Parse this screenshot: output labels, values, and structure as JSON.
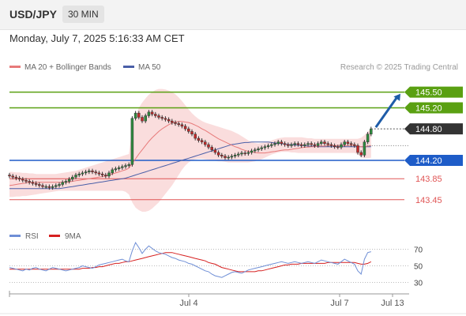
{
  "header": {
    "pair": "USD/JPY",
    "timeframe": "30 MIN"
  },
  "datetime": "Monday, July 7, 2025 5:16:33 AM CET",
  "credit": "Research © 2025 Trading Central",
  "colors": {
    "ma20": "#e77a7a",
    "bands": "#f9d4d4",
    "ma50": "#4a5fa8",
    "up": "#2e8b3e",
    "down": "#c62828",
    "candle": "#333333",
    "resistance": "#5aa012",
    "support_blue": "#1e5cc8",
    "support_red": "#e05555",
    "arrow": "#1e5ca8",
    "rsi": "#6f8fd6",
    "rsi_ma": "#d62020",
    "current": "#333333"
  },
  "chart_data": [
    {
      "type": "candlestick",
      "title": "",
      "legend": [
        {
          "name": "MA 20 + Bollinger Bands",
          "color": "#e77a7a"
        },
        {
          "name": "MA 50",
          "color": "#4a5fa8"
        }
      ],
      "legend_position": "top-left",
      "ylim": [
        143.1,
        145.75
      ],
      "x_ticks": [
        "Jul 4",
        "Jul 7",
        "Jul 13"
      ],
      "current_price": "144.80",
      "levels": [
        {
          "value": 145.5,
          "label": "145.50",
          "kind": "resistance",
          "style": "tag"
        },
        {
          "value": 145.2,
          "label": "145.20",
          "kind": "resistance",
          "style": "tag"
        },
        {
          "value": 144.2,
          "label": "144.20",
          "kind": "support",
          "style": "tag"
        },
        {
          "value": 143.85,
          "label": "143.85",
          "kind": "support",
          "style": "text"
        },
        {
          "value": 143.45,
          "label": "143.45",
          "kind": "support",
          "style": "text"
        }
      ],
      "close": [
        143.9,
        143.88,
        143.86,
        143.84,
        143.82,
        143.8,
        143.78,
        143.76,
        143.74,
        143.72,
        143.7,
        143.7,
        143.68,
        143.7,
        143.72,
        143.74,
        143.78,
        143.8,
        143.84,
        143.88,
        143.92,
        143.94,
        143.96,
        143.98,
        144.0,
        143.98,
        143.96,
        143.94,
        143.92,
        143.9,
        143.96,
        144.02,
        144.04,
        144.06,
        144.08,
        144.1,
        144.12,
        145.0,
        145.1,
        145.02,
        144.95,
        145.05,
        145.12,
        145.08,
        145.05,
        145.02,
        145.0,
        144.98,
        144.95,
        144.92,
        144.9,
        144.88,
        144.85,
        144.8,
        144.75,
        144.7,
        144.62,
        144.58,
        144.55,
        144.5,
        144.45,
        144.4,
        144.35,
        144.3,
        144.28,
        144.25,
        144.26,
        144.28,
        144.3,
        144.32,
        144.34,
        144.33,
        144.35,
        144.38,
        144.4,
        144.42,
        144.44,
        144.46,
        144.48,
        144.5,
        144.52,
        144.55,
        144.52,
        144.5,
        144.48,
        144.5,
        144.52,
        144.5,
        144.48,
        144.5,
        144.52,
        144.5,
        144.48,
        144.52,
        144.55,
        144.52,
        144.5,
        144.48,
        144.46,
        144.45,
        144.5,
        144.55,
        144.52,
        144.5,
        144.48,
        144.35,
        144.3,
        144.55,
        144.7,
        144.8
      ],
      "ma20": [
        143.72,
        143.73,
        143.74,
        143.75,
        143.76,
        143.77,
        143.78,
        143.78,
        143.78,
        143.78,
        143.78,
        143.78,
        143.78,
        143.78,
        143.78,
        143.78,
        143.78,
        143.78,
        143.79,
        143.8,
        143.81,
        143.82,
        143.83,
        143.84,
        143.85,
        143.86,
        143.87,
        143.88,
        143.89,
        143.9,
        143.92,
        143.94,
        143.96,
        143.98,
        144.0,
        144.02,
        144.05,
        144.14,
        144.23,
        144.32,
        144.4,
        144.48,
        144.56,
        144.63,
        144.69,
        144.75,
        144.8,
        144.84,
        144.88,
        144.91,
        144.93,
        144.94,
        144.94,
        144.93,
        144.92,
        144.9,
        144.87,
        144.84,
        144.8,
        144.77,
        144.73,
        144.69,
        144.65,
        144.61,
        144.58,
        144.55,
        144.52,
        144.49,
        144.46,
        144.44,
        144.41,
        144.39,
        144.37,
        144.36,
        144.35,
        144.34,
        144.34,
        144.34,
        144.35,
        144.36,
        144.37,
        144.38,
        144.39,
        144.4,
        144.4,
        144.41,
        144.42,
        144.43,
        144.44,
        144.45,
        144.45,
        144.46,
        144.46,
        144.47,
        144.47,
        144.47,
        144.48,
        144.48,
        144.48,
        144.48,
        144.48,
        144.48,
        144.48,
        144.48,
        144.48,
        144.47,
        144.46,
        144.46,
        144.47,
        144.48
      ],
      "bb_upper": [
        143.98,
        143.98,
        143.97,
        143.97,
        143.96,
        143.96,
        143.95,
        143.95,
        143.94,
        143.94,
        143.94,
        143.94,
        143.94,
        143.94,
        143.94,
        143.95,
        143.96,
        143.97,
        143.98,
        143.99,
        144.0,
        144.02,
        144.04,
        144.06,
        144.08,
        144.1,
        144.12,
        144.14,
        144.16,
        144.18,
        144.2,
        144.22,
        144.24,
        144.26,
        144.28,
        144.3,
        144.32,
        144.8,
        145.05,
        145.2,
        145.3,
        145.38,
        145.45,
        145.5,
        145.54,
        145.56,
        145.56,
        145.55,
        145.53,
        145.5,
        145.46,
        145.4,
        145.33,
        145.25,
        145.17,
        145.1,
        145.04,
        144.99,
        144.95,
        144.92,
        144.9,
        144.88,
        144.86,
        144.84,
        144.82,
        144.8,
        144.78,
        144.76,
        144.73,
        144.7,
        144.66,
        144.62,
        144.58,
        144.55,
        144.53,
        144.52,
        144.53,
        144.54,
        144.56,
        144.58,
        144.6,
        144.62,
        144.63,
        144.64,
        144.64,
        144.64,
        144.64,
        144.64,
        144.64,
        144.63,
        144.62,
        144.62,
        144.61,
        144.61,
        144.61,
        144.61,
        144.61,
        144.61,
        144.61,
        144.61,
        144.61,
        144.61,
        144.61,
        144.61,
        144.61,
        144.61,
        144.63,
        144.68,
        144.75,
        144.8
      ],
      "bb_lower": [
        143.5,
        143.5,
        143.51,
        143.51,
        143.52,
        143.52,
        143.53,
        143.54,
        143.55,
        143.56,
        143.57,
        143.58,
        143.59,
        143.6,
        143.61,
        143.62,
        143.62,
        143.62,
        143.62,
        143.62,
        143.62,
        143.62,
        143.62,
        143.62,
        143.62,
        143.62,
        143.62,
        143.62,
        143.62,
        143.62,
        143.62,
        143.62,
        143.62,
        143.62,
        143.62,
        143.6,
        143.55,
        143.4,
        143.3,
        143.25,
        143.22,
        143.22,
        143.24,
        143.28,
        143.34,
        143.4,
        143.48,
        143.56,
        143.64,
        143.72,
        143.82,
        143.92,
        144.02,
        144.1,
        144.16,
        144.2,
        144.22,
        144.23,
        144.23,
        144.22,
        144.21,
        144.2,
        144.19,
        144.18,
        144.18,
        144.17,
        144.16,
        144.16,
        144.16,
        144.16,
        144.16,
        144.16,
        144.16,
        144.17,
        144.18,
        144.2,
        144.22,
        144.25,
        144.28,
        144.31,
        144.33,
        144.35,
        144.36,
        144.36,
        144.36,
        144.35,
        144.35,
        144.34,
        144.34,
        144.34,
        144.34,
        144.34,
        144.34,
        144.34,
        144.34,
        144.34,
        144.34,
        144.34,
        144.34,
        144.34,
        144.34,
        144.34,
        144.34,
        144.34,
        144.34,
        144.31,
        144.26,
        144.24,
        144.24,
        144.25
      ],
      "ma50": [
        143.66,
        143.66,
        143.66,
        143.66,
        143.66,
        143.66,
        143.66,
        143.66,
        143.66,
        143.66,
        143.66,
        143.66,
        143.66,
        143.66,
        143.66,
        143.66,
        143.67,
        143.68,
        143.69,
        143.7,
        143.71,
        143.72,
        143.73,
        143.74,
        143.75,
        143.76,
        143.77,
        143.78,
        143.79,
        143.8,
        143.81,
        143.82,
        143.83,
        143.84,
        143.85,
        143.86,
        143.88,
        143.9,
        143.92,
        143.94,
        143.96,
        143.98,
        144.0,
        144.02,
        144.04,
        144.06,
        144.08,
        144.1,
        144.12,
        144.14,
        144.16,
        144.18,
        144.2,
        144.22,
        144.24,
        144.26,
        144.28,
        144.3,
        144.32,
        144.34,
        144.36,
        144.38,
        144.4,
        144.42,
        144.44,
        144.46,
        144.48,
        144.5,
        144.51,
        144.52,
        144.53,
        144.54,
        144.54,
        144.55,
        144.55,
        144.55,
        144.55,
        144.55,
        144.55,
        144.54,
        144.53,
        144.52,
        144.52,
        144.51,
        144.5,
        144.5,
        144.49,
        144.49,
        144.48,
        144.48,
        144.47,
        144.47,
        144.47,
        144.46,
        144.46,
        144.46,
        144.46,
        144.46,
        144.46,
        144.46,
        144.46,
        144.46,
        144.46,
        144.46,
        144.46,
        144.46,
        144.46,
        144.46,
        144.46,
        144.46
      ]
    },
    {
      "type": "line",
      "title": "",
      "legend": [
        {
          "name": "RSI",
          "color": "#6f8fd6"
        },
        {
          "name": "9MA",
          "color": "#d62020"
        }
      ],
      "legend_position": "top-left",
      "ylim": [
        20,
        80
      ],
      "y_ticks": [
        70,
        50,
        30
      ],
      "x_ticks": [
        "Jul 4",
        "Jul 7",
        "Jul 13"
      ],
      "series": [
        {
          "name": "RSI",
          "values": [
            48,
            47,
            46,
            45,
            44,
            46,
            45,
            47,
            48,
            46,
            45,
            44,
            46,
            48,
            47,
            46,
            45,
            44,
            45,
            46,
            47,
            48,
            50,
            49,
            48,
            47,
            49,
            51,
            52,
            53,
            54,
            55,
            56,
            57,
            58,
            56,
            55,
            68,
            78,
            72,
            65,
            70,
            74,
            71,
            68,
            66,
            65,
            64,
            62,
            60,
            59,
            57,
            56,
            55,
            53,
            52,
            50,
            48,
            46,
            44,
            43,
            40,
            38,
            37,
            36,
            38,
            40,
            42,
            43,
            42,
            41,
            43,
            45,
            46,
            47,
            48,
            49,
            50,
            51,
            52,
            53,
            54,
            55,
            54,
            53,
            54,
            55,
            54,
            53,
            54,
            55,
            54,
            53,
            55,
            57,
            56,
            55,
            54,
            53,
            52,
            55,
            58,
            56,
            54,
            52,
            44,
            40,
            58,
            66,
            67
          ]
        },
        {
          "name": "9MA",
          "values": [
            46,
            46,
            46,
            46,
            46,
            46,
            46,
            46,
            46,
            46,
            46,
            46,
            46,
            46,
            46,
            46,
            46,
            46,
            46,
            46,
            46,
            46,
            47,
            47,
            47,
            48,
            48,
            49,
            49,
            50,
            51,
            52,
            53,
            53,
            54,
            55,
            55,
            56,
            57,
            58,
            59,
            60,
            61,
            62,
            63,
            64,
            65,
            66,
            66,
            66,
            65,
            64,
            63,
            62,
            61,
            60,
            59,
            58,
            57,
            56,
            54,
            53,
            52,
            50,
            48,
            47,
            46,
            45,
            44,
            43,
            43,
            43,
            43,
            43,
            43,
            44,
            44,
            45,
            46,
            47,
            48,
            49,
            50,
            51,
            51,
            52,
            52,
            52,
            53,
            53,
            53,
            53,
            53,
            53,
            53,
            53,
            54,
            54,
            54,
            54,
            54,
            54,
            54,
            54,
            54,
            53,
            52,
            52,
            53,
            55
          ]
        }
      ]
    }
  ]
}
